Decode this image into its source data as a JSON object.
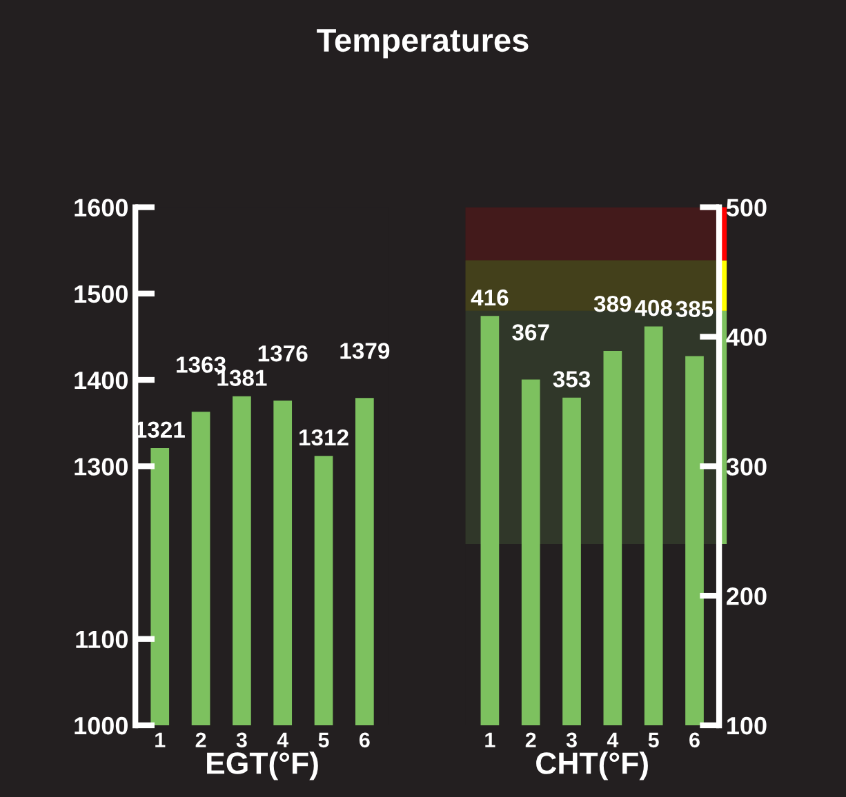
{
  "chart_data": [
    {
      "type": "bar",
      "title": "Temperatures",
      "xlabel": "EGT(°F)",
      "categories": [
        "1",
        "2",
        "3",
        "4",
        "5",
        "6"
      ],
      "values": [
        1321,
        1363,
        1381,
        1376,
        1312,
        1379
      ],
      "color": "#7dc15f",
      "ylim": [
        1000,
        1600
      ],
      "yticks": [
        1000,
        1100,
        1300,
        1400,
        1500,
        1600
      ],
      "data_labels": true,
      "grid": false
    },
    {
      "type": "bar",
      "xlabel": "CHT(°F)",
      "categories": [
        "1",
        "2",
        "3",
        "4",
        "5",
        "6"
      ],
      "values": [
        416,
        367,
        353,
        389,
        408,
        385
      ],
      "color": "#7dc15f",
      "ylim": [
        100,
        500
      ],
      "yticks": [
        100,
        200,
        300,
        400,
        500
      ],
      "data_labels": true,
      "grid": false,
      "bands": [
        {
          "axis": "y",
          "from": 240,
          "to": 420,
          "color": "#7dc15f"
        },
        {
          "axis": "y",
          "from": 420,
          "to": 459,
          "color": "#ffff00"
        },
        {
          "axis": "y",
          "from": 459,
          "to": 500,
          "color": "#ff0000"
        }
      ]
    }
  ]
}
